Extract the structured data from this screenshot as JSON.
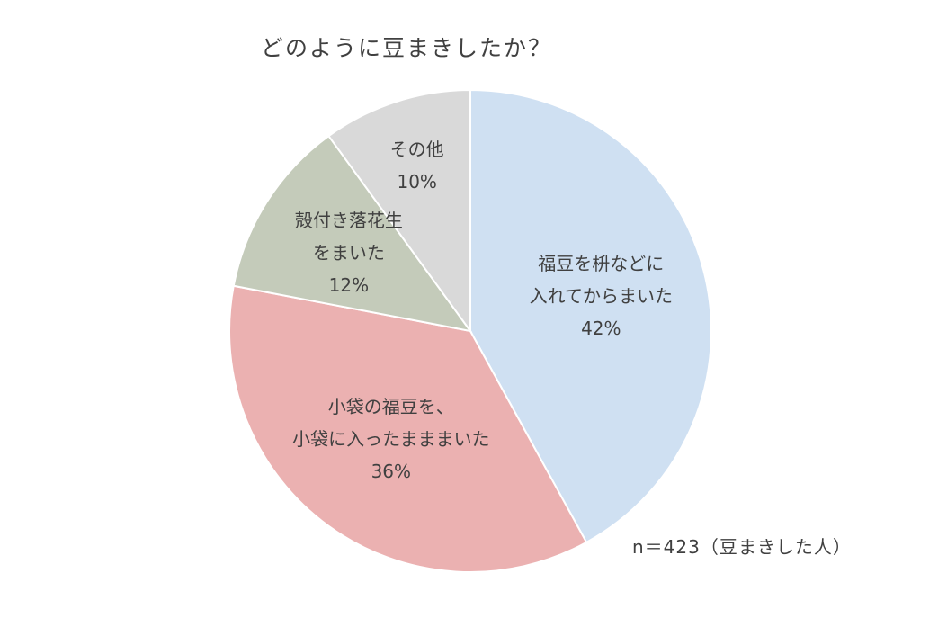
{
  "chart_data": {
    "type": "pie",
    "title": "どのように豆まきしたか？",
    "note": "n＝423（豆まきした人）",
    "start_angle_deg": 0,
    "direction": "clockwise",
    "slices": [
      {
        "label_lines": [
          "福豆を枡などに",
          "入れてからまいた"
        ],
        "pct_label": "42%",
        "value": 42,
        "color": "#cfe0f2"
      },
      {
        "label_lines": [
          "小袋の福豆を、",
          "小袋に入ったまままいた"
        ],
        "pct_label": "36%",
        "value": 36,
        "color": "#ebb1b1"
      },
      {
        "label_lines": [
          "殻付き落花生",
          "をまいた"
        ],
        "pct_label": "12%",
        "value": 12,
        "color": "#c4cbba"
      },
      {
        "label_lines": [
          "その他"
        ],
        "pct_label": "10%",
        "value": 10,
        "color": "#d9d9d9"
      }
    ]
  }
}
